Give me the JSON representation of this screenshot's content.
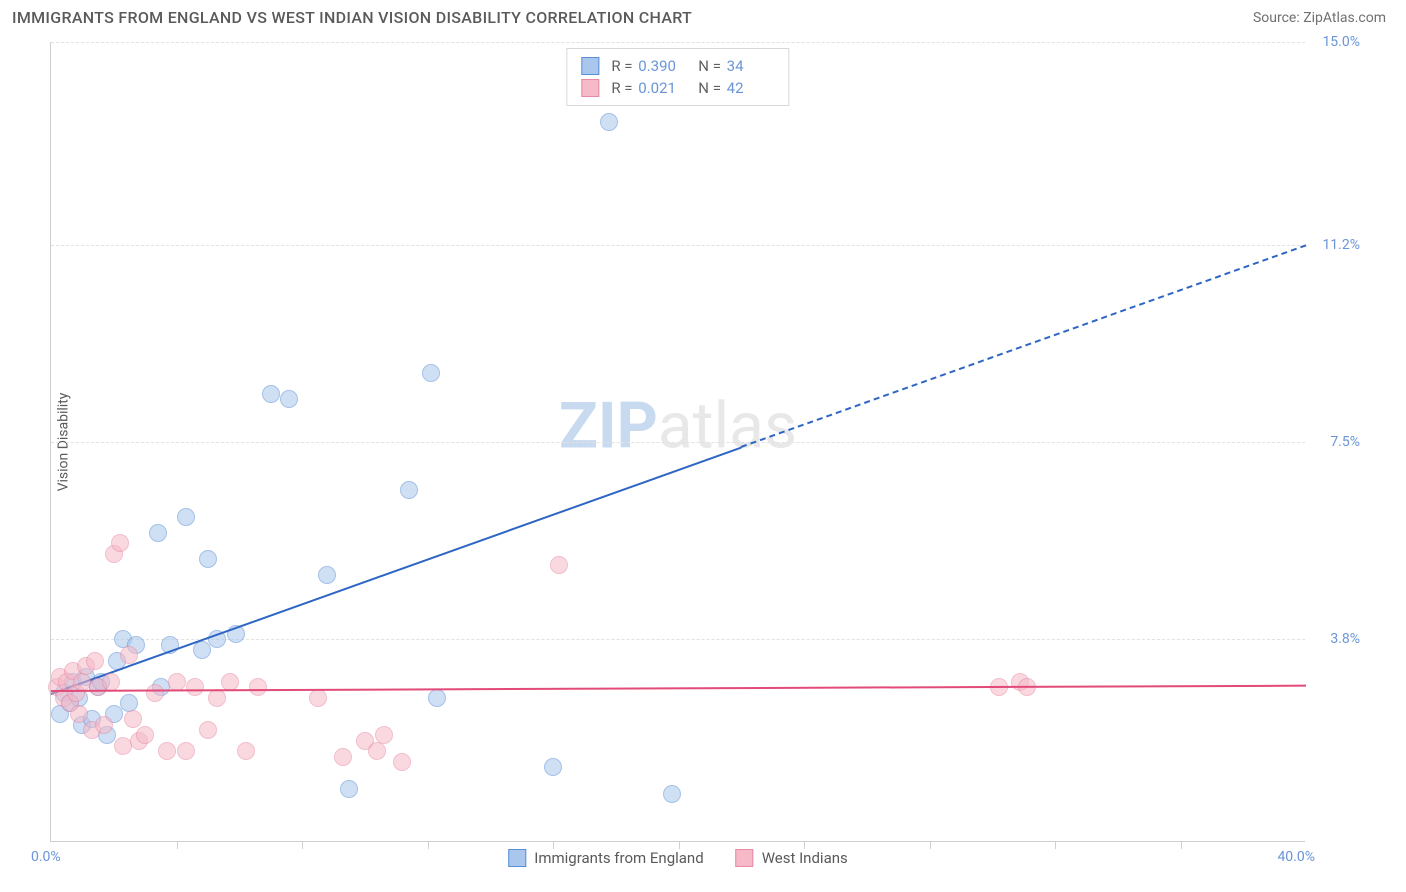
{
  "header": {
    "title": "IMMIGRANTS FROM ENGLAND VS WEST INDIAN VISION DISABILITY CORRELATION CHART",
    "source": "Source: ZipAtlas.com"
  },
  "chart": {
    "type": "scatter",
    "watermark_prefix": "ZIP",
    "watermark_suffix": "atlas",
    "y_axis_title": "Vision Disability",
    "xlim": [
      0,
      40
    ],
    "ylim": [
      0,
      15
    ],
    "x_tick_step": 4,
    "y_gridlines": [
      3.8,
      7.5,
      11.2,
      15.0
    ],
    "y_tick_labels": [
      "3.8%",
      "7.5%",
      "11.2%",
      "15.0%"
    ],
    "x_min_label": "0.0%",
    "x_max_label": "40.0%",
    "background_color": "#ffffff",
    "grid_color": "#e2e2e2",
    "axis_color": "#cfcfcf",
    "label_color": "#6a95d8",
    "point_radius": 9,
    "point_opacity": 0.55,
    "series": [
      {
        "name": "Immigrants from England",
        "fill_color": "#a9c6ec",
        "stroke_color": "#5a8fd6",
        "trend_color": "#2f66c4",
        "r_value": "0.390",
        "n_value": "34",
        "trend": {
          "x1": 0,
          "y1": 2.8,
          "x2": 40,
          "y2": 11.2,
          "solid_until_x": 22
        },
        "points": [
          [
            0.3,
            2.4
          ],
          [
            0.4,
            2.8
          ],
          [
            0.6,
            2.6
          ],
          [
            0.7,
            3.0
          ],
          [
            0.9,
            2.7
          ],
          [
            1.0,
            2.2
          ],
          [
            1.1,
            3.1
          ],
          [
            1.3,
            2.3
          ],
          [
            1.5,
            2.9
          ],
          [
            1.6,
            3.0
          ],
          [
            1.8,
            2.0
          ],
          [
            2.0,
            2.4
          ],
          [
            2.1,
            3.4
          ],
          [
            2.3,
            3.8
          ],
          [
            2.5,
            2.6
          ],
          [
            2.7,
            3.7
          ],
          [
            3.4,
            5.8
          ],
          [
            3.5,
            2.9
          ],
          [
            3.8,
            3.7
          ],
          [
            4.3,
            6.1
          ],
          [
            4.8,
            3.6
          ],
          [
            5.0,
            5.3
          ],
          [
            5.3,
            3.8
          ],
          [
            5.9,
            3.9
          ],
          [
            7.0,
            8.4
          ],
          [
            7.6,
            8.3
          ],
          [
            8.8,
            5.0
          ],
          [
            9.5,
            1.0
          ],
          [
            11.4,
            6.6
          ],
          [
            12.1,
            8.8
          ],
          [
            12.3,
            2.7
          ],
          [
            16.0,
            1.4
          ],
          [
            17.8,
            13.5
          ],
          [
            19.8,
            0.9
          ]
        ]
      },
      {
        "name": "West Indians",
        "fill_color": "#f5b9c8",
        "stroke_color": "#e88aa4",
        "trend_color": "#e24a78",
        "r_value": "0.021",
        "n_value": "42",
        "trend": {
          "x1": 0,
          "y1": 2.85,
          "x2": 40,
          "y2": 2.95,
          "solid_until_x": 40
        },
        "points": [
          [
            0.2,
            2.9
          ],
          [
            0.3,
            3.1
          ],
          [
            0.4,
            2.7
          ],
          [
            0.5,
            3.0
          ],
          [
            0.6,
            2.6
          ],
          [
            0.7,
            3.2
          ],
          [
            0.8,
            2.8
          ],
          [
            0.9,
            2.4
          ],
          [
            1.0,
            3.0
          ],
          [
            1.1,
            3.3
          ],
          [
            1.3,
            2.1
          ],
          [
            1.4,
            3.4
          ],
          [
            1.5,
            2.9
          ],
          [
            1.7,
            2.2
          ],
          [
            1.9,
            3.0
          ],
          [
            2.0,
            5.4
          ],
          [
            2.2,
            5.6
          ],
          [
            2.3,
            1.8
          ],
          [
            2.5,
            3.5
          ],
          [
            2.6,
            2.3
          ],
          [
            2.8,
            1.9
          ],
          [
            3.0,
            2.0
          ],
          [
            3.3,
            2.8
          ],
          [
            3.7,
            1.7
          ],
          [
            4.0,
            3.0
          ],
          [
            4.3,
            1.7
          ],
          [
            4.6,
            2.9
          ],
          [
            5.0,
            2.1
          ],
          [
            5.3,
            2.7
          ],
          [
            5.7,
            3.0
          ],
          [
            6.2,
            1.7
          ],
          [
            6.6,
            2.9
          ],
          [
            8.5,
            2.7
          ],
          [
            9.3,
            1.6
          ],
          [
            10.0,
            1.9
          ],
          [
            10.4,
            1.7
          ],
          [
            10.6,
            2.0
          ],
          [
            11.2,
            1.5
          ],
          [
            16.2,
            5.2
          ],
          [
            30.2,
            2.9
          ],
          [
            30.9,
            3.0
          ],
          [
            31.1,
            2.9
          ]
        ]
      }
    ],
    "legend_bottom": [
      {
        "label": "Immigrants from England"
      },
      {
        "label": "West Indians"
      }
    ]
  }
}
